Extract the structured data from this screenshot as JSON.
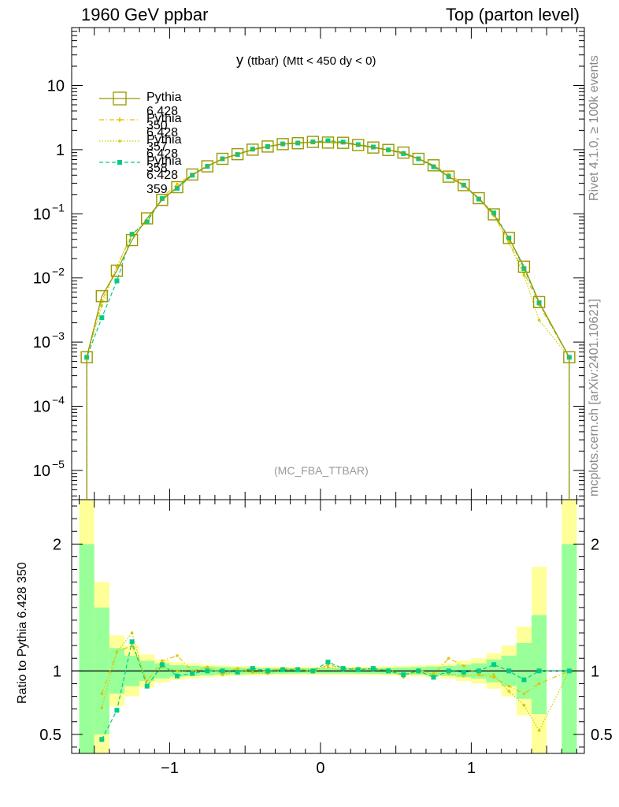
{
  "header": {
    "left": "1960 GeV ppbar",
    "right": "Top (parton level)"
  },
  "plot_title": {
    "main": "y",
    "sub": "(ttbar)",
    "rest": "(Mtt < 450 dy < 0)"
  },
  "annotation": "(MC_FBA_TTBAR)",
  "side_text": {
    "rivet": "Rivet 4.1.0, ≥ 100k events",
    "source": "mcplots.cern.ch [arXiv:2401.10621]"
  },
  "ratio_ylabel": "Ratio to Pythia 6.428 350",
  "colors": {
    "s350": "#999900",
    "s357": "#e6c200",
    "s358": "#cccc00",
    "s359": "#00cc88",
    "band_yellow": "#ffff99",
    "band_green": "#99ff99"
  },
  "legend": [
    {
      "label": "Pythia 6.428 350",
      "series": "s350"
    },
    {
      "label": "Pythia 6.428 357",
      "series": "s357"
    },
    {
      "label": "Pythia 6.428 358",
      "series": "s358"
    },
    {
      "label": "Pythia 6.428 359",
      "series": "s359"
    }
  ],
  "chart_data": {
    "type": "line",
    "xlabel": "",
    "ylabel": "",
    "xlim": [
      -1.65,
      1.75
    ],
    "ylim": [
      3.5e-06,
      80
    ],
    "yscale": "log",
    "x_ticks": [
      -1,
      0,
      1
    ],
    "x_tick_labels": [
      "−1",
      "0",
      "1"
    ],
    "y_ticks": [
      {
        "v": 10,
        "base": "10",
        "exp": ""
      },
      {
        "v": 1,
        "base": "1",
        "exp": ""
      },
      {
        "v": 0.1,
        "base": "10",
        "exp": "−1"
      },
      {
        "v": 0.01,
        "base": "10",
        "exp": "−2"
      },
      {
        "v": 0.001,
        "base": "10",
        "exp": "−3"
      },
      {
        "v": 0.0001,
        "base": "10",
        "exp": "−4"
      },
      {
        "v": 1e-05,
        "base": "10",
        "exp": "−5"
      }
    ],
    "x": [
      -1.55,
      -1.45,
      -1.35,
      -1.25,
      -1.15,
      -1.05,
      -0.95,
      -0.85,
      -0.75,
      -0.65,
      -0.55,
      -0.45,
      -0.35,
      -0.25,
      -0.15,
      -0.05,
      0.05,
      0.15,
      0.25,
      0.35,
      0.45,
      0.55,
      0.65,
      0.75,
      0.85,
      0.95,
      1.05,
      1.15,
      1.25,
      1.35,
      1.45,
      1.65
    ],
    "series": [
      {
        "name": "Pythia 6.428 350",
        "key": "s350",
        "values": [
          0.00058,
          0.0052,
          0.013,
          0.039,
          0.085,
          0.165,
          0.26,
          0.41,
          0.55,
          0.72,
          0.85,
          1.0,
          1.12,
          1.22,
          1.26,
          1.32,
          1.29,
          1.28,
          1.18,
          1.08,
          0.99,
          0.9,
          0.72,
          0.57,
          0.38,
          0.28,
          0.175,
          0.098,
          0.042,
          0.015,
          0.0042,
          0.00058
        ]
      },
      {
        "name": "Pythia 6.428 357",
        "key": "s357",
        "values": [
          0.00058,
          0.0044,
          0.015,
          0.047,
          0.078,
          0.18,
          0.29,
          0.41,
          0.56,
          0.71,
          0.86,
          0.98,
          1.12,
          1.25,
          1.28,
          1.3,
          1.36,
          1.3,
          1.2,
          1.1,
          1.0,
          0.85,
          0.73,
          0.56,
          0.42,
          0.29,
          0.17,
          0.093,
          0.037,
          0.012,
          0.0038,
          0.00058
        ]
      },
      {
        "name": "Pythia 6.428 358",
        "key": "s358",
        "values": [
          0.00058,
          0.0037,
          0.015,
          0.05,
          0.075,
          0.17,
          0.26,
          0.4,
          0.57,
          0.7,
          0.85,
          0.99,
          1.1,
          1.23,
          1.28,
          1.33,
          1.33,
          1.3,
          1.21,
          1.09,
          1.0,
          0.87,
          0.71,
          0.56,
          0.37,
          0.27,
          0.17,
          0.095,
          0.035,
          0.011,
          0.0022,
          0.00058
        ]
      },
      {
        "name": "Pythia 6.428 359",
        "key": "s359",
        "values": [
          0.00058,
          0.0024,
          0.009,
          0.048,
          0.075,
          0.173,
          0.25,
          0.4,
          0.55,
          0.72,
          0.84,
          1.02,
          1.12,
          1.23,
          1.27,
          1.32,
          1.38,
          1.31,
          1.2,
          1.1,
          0.99,
          0.87,
          0.72,
          0.54,
          0.38,
          0.28,
          0.17,
          0.103,
          0.042,
          0.014,
          0.0041,
          0.00058
        ]
      }
    ],
    "ratio_panel": {
      "ylim": [
        0.35,
        2.35
      ],
      "y_ticks": [
        0.5,
        1,
        2
      ],
      "y_tick_labels": [
        "0.5",
        "1",
        "2"
      ],
      "bins": [
        {
          "lo": -1.6,
          "hi": -1.5,
          "yellow": [
            0,
            2.4
          ],
          "green": [
            0,
            2.0
          ]
        },
        {
          "lo": -1.5,
          "hi": -1.4,
          "yellow": [
            0.3,
            1.7
          ],
          "green": [
            0.5,
            1.5
          ]
        },
        {
          "lo": -1.4,
          "hi": -1.3,
          "yellow": [
            0.72,
            1.28
          ],
          "green": [
            0.82,
            1.18
          ]
        },
        {
          "lo": -1.3,
          "hi": -1.2,
          "yellow": [
            0.8,
            1.2
          ],
          "green": [
            0.88,
            1.12
          ]
        },
        {
          "lo": -1.2,
          "hi": -1.1,
          "yellow": [
            0.87,
            1.13
          ],
          "green": [
            0.92,
            1.08
          ]
        },
        {
          "lo": -1.1,
          "hi": -1.0,
          "yellow": [
            0.91,
            1.09
          ],
          "green": [
            0.94,
            1.06
          ]
        },
        {
          "lo": -1.0,
          "hi": -0.9,
          "yellow": [
            0.93,
            1.07
          ],
          "green": [
            0.955,
            1.045
          ]
        },
        {
          "lo": -0.9,
          "hi": -0.8,
          "yellow": [
            0.94,
            1.06
          ],
          "green": [
            0.96,
            1.04
          ]
        },
        {
          "lo": -0.8,
          "hi": -0.7,
          "yellow": [
            0.95,
            1.05
          ],
          "green": [
            0.965,
            1.035
          ]
        },
        {
          "lo": -0.7,
          "hi": -0.6,
          "yellow": [
            0.955,
            1.045
          ],
          "green": [
            0.97,
            1.03
          ]
        },
        {
          "lo": -0.6,
          "hi": -0.5,
          "yellow": [
            0.96,
            1.04
          ],
          "green": [
            0.973,
            1.027
          ]
        },
        {
          "lo": -0.5,
          "hi": -0.4,
          "yellow": [
            0.962,
            1.038
          ],
          "green": [
            0.975,
            1.025
          ]
        },
        {
          "lo": -0.4,
          "hi": -0.3,
          "yellow": [
            0.965,
            1.035
          ],
          "green": [
            0.977,
            1.023
          ]
        },
        {
          "lo": -0.3,
          "hi": -0.2,
          "yellow": [
            0.966,
            1.034
          ],
          "green": [
            0.978,
            1.022
          ]
        },
        {
          "lo": -0.2,
          "hi": -0.1,
          "yellow": [
            0.967,
            1.033
          ],
          "green": [
            0.979,
            1.021
          ]
        },
        {
          "lo": -0.1,
          "hi": 0.0,
          "yellow": [
            0.967,
            1.033
          ],
          "green": [
            0.979,
            1.021
          ]
        },
        {
          "lo": 0.0,
          "hi": 0.1,
          "yellow": [
            0.967,
            1.033
          ],
          "green": [
            0.979,
            1.021
          ]
        },
        {
          "lo": 0.1,
          "hi": 0.2,
          "yellow": [
            0.967,
            1.033
          ],
          "green": [
            0.979,
            1.021
          ]
        },
        {
          "lo": 0.2,
          "hi": 0.3,
          "yellow": [
            0.966,
            1.034
          ],
          "green": [
            0.978,
            1.022
          ]
        },
        {
          "lo": 0.3,
          "hi": 0.4,
          "yellow": [
            0.965,
            1.035
          ],
          "green": [
            0.977,
            1.023
          ]
        },
        {
          "lo": 0.4,
          "hi": 0.5,
          "yellow": [
            0.962,
            1.038
          ],
          "green": [
            0.975,
            1.025
          ]
        },
        {
          "lo": 0.5,
          "hi": 0.6,
          "yellow": [
            0.96,
            1.04
          ],
          "green": [
            0.973,
            1.027
          ]
        },
        {
          "lo": 0.6,
          "hi": 0.7,
          "yellow": [
            0.955,
            1.045
          ],
          "green": [
            0.97,
            1.03
          ]
        },
        {
          "lo": 0.7,
          "hi": 0.8,
          "yellow": [
            0.95,
            1.05
          ],
          "green": [
            0.965,
            1.035
          ]
        },
        {
          "lo": 0.8,
          "hi": 0.9,
          "yellow": [
            0.94,
            1.06
          ],
          "green": [
            0.96,
            1.04
          ]
        },
        {
          "lo": 0.9,
          "hi": 1.0,
          "yellow": [
            0.92,
            1.08
          ],
          "green": [
            0.95,
            1.05
          ]
        },
        {
          "lo": 1.0,
          "hi": 1.1,
          "yellow": [
            0.9,
            1.1
          ],
          "green": [
            0.94,
            1.06
          ]
        },
        {
          "lo": 1.1,
          "hi": 1.2,
          "yellow": [
            0.86,
            1.14
          ],
          "green": [
            0.91,
            1.09
          ]
        },
        {
          "lo": 1.2,
          "hi": 1.3,
          "yellow": [
            0.8,
            1.2
          ],
          "green": [
            0.88,
            1.12
          ]
        },
        {
          "lo": 1.3,
          "hi": 1.4,
          "yellow": [
            0.65,
            1.35
          ],
          "green": [
            0.78,
            1.22
          ]
        },
        {
          "lo": 1.4,
          "hi": 1.5,
          "yellow": [
            0,
            1.82
          ],
          "green": [
            0.66,
            1.44
          ]
        },
        {
          "lo": 1.6,
          "hi": 1.7,
          "yellow": [
            0,
            2.4
          ],
          "green": [
            0,
            2.0
          ]
        }
      ],
      "series": [
        {
          "key": "s357",
          "values": [
            null,
            0.82,
            1.15,
            1.2,
            0.92,
            1.08,
            1.12,
            1.0,
            1.03,
            0.98,
            1.02,
            0.99,
            1.0,
            1.02,
            1.02,
            0.99,
            1.05,
            1.02,
            1.02,
            1.01,
            1.01,
            0.95,
            1.01,
            0.97,
            1.1,
            1.04,
            0.97,
            0.95,
            0.88,
            0.82,
            0.9,
            1.0
          ]
        },
        {
          "key": "s358",
          "values": [
            null,
            0.71,
            1.15,
            1.3,
            0.88,
            1.03,
            1.0,
            0.99,
            1.03,
            0.97,
            1.0,
            0.99,
            0.98,
            1.01,
            1.02,
            1.01,
            1.03,
            1.01,
            1.02,
            1.01,
            1.01,
            0.97,
            0.99,
            0.98,
            0.98,
            0.96,
            0.97,
            0.97,
            0.84,
            0.73,
            0.53,
            1.0
          ]
        },
        {
          "key": "s359",
          "values": [
            null,
            0.46,
            0.69,
            1.23,
            0.88,
            1.05,
            0.96,
            0.98,
            1.0,
            1.0,
            0.99,
            1.02,
            1.0,
            1.01,
            1.01,
            1.0,
            1.07,
            1.02,
            1.01,
            1.02,
            1.0,
            0.97,
            1.0,
            0.95,
            1.0,
            0.99,
            1.0,
            1.05,
            1.0,
            0.93,
            1.0,
            1.0
          ]
        }
      ]
    }
  }
}
